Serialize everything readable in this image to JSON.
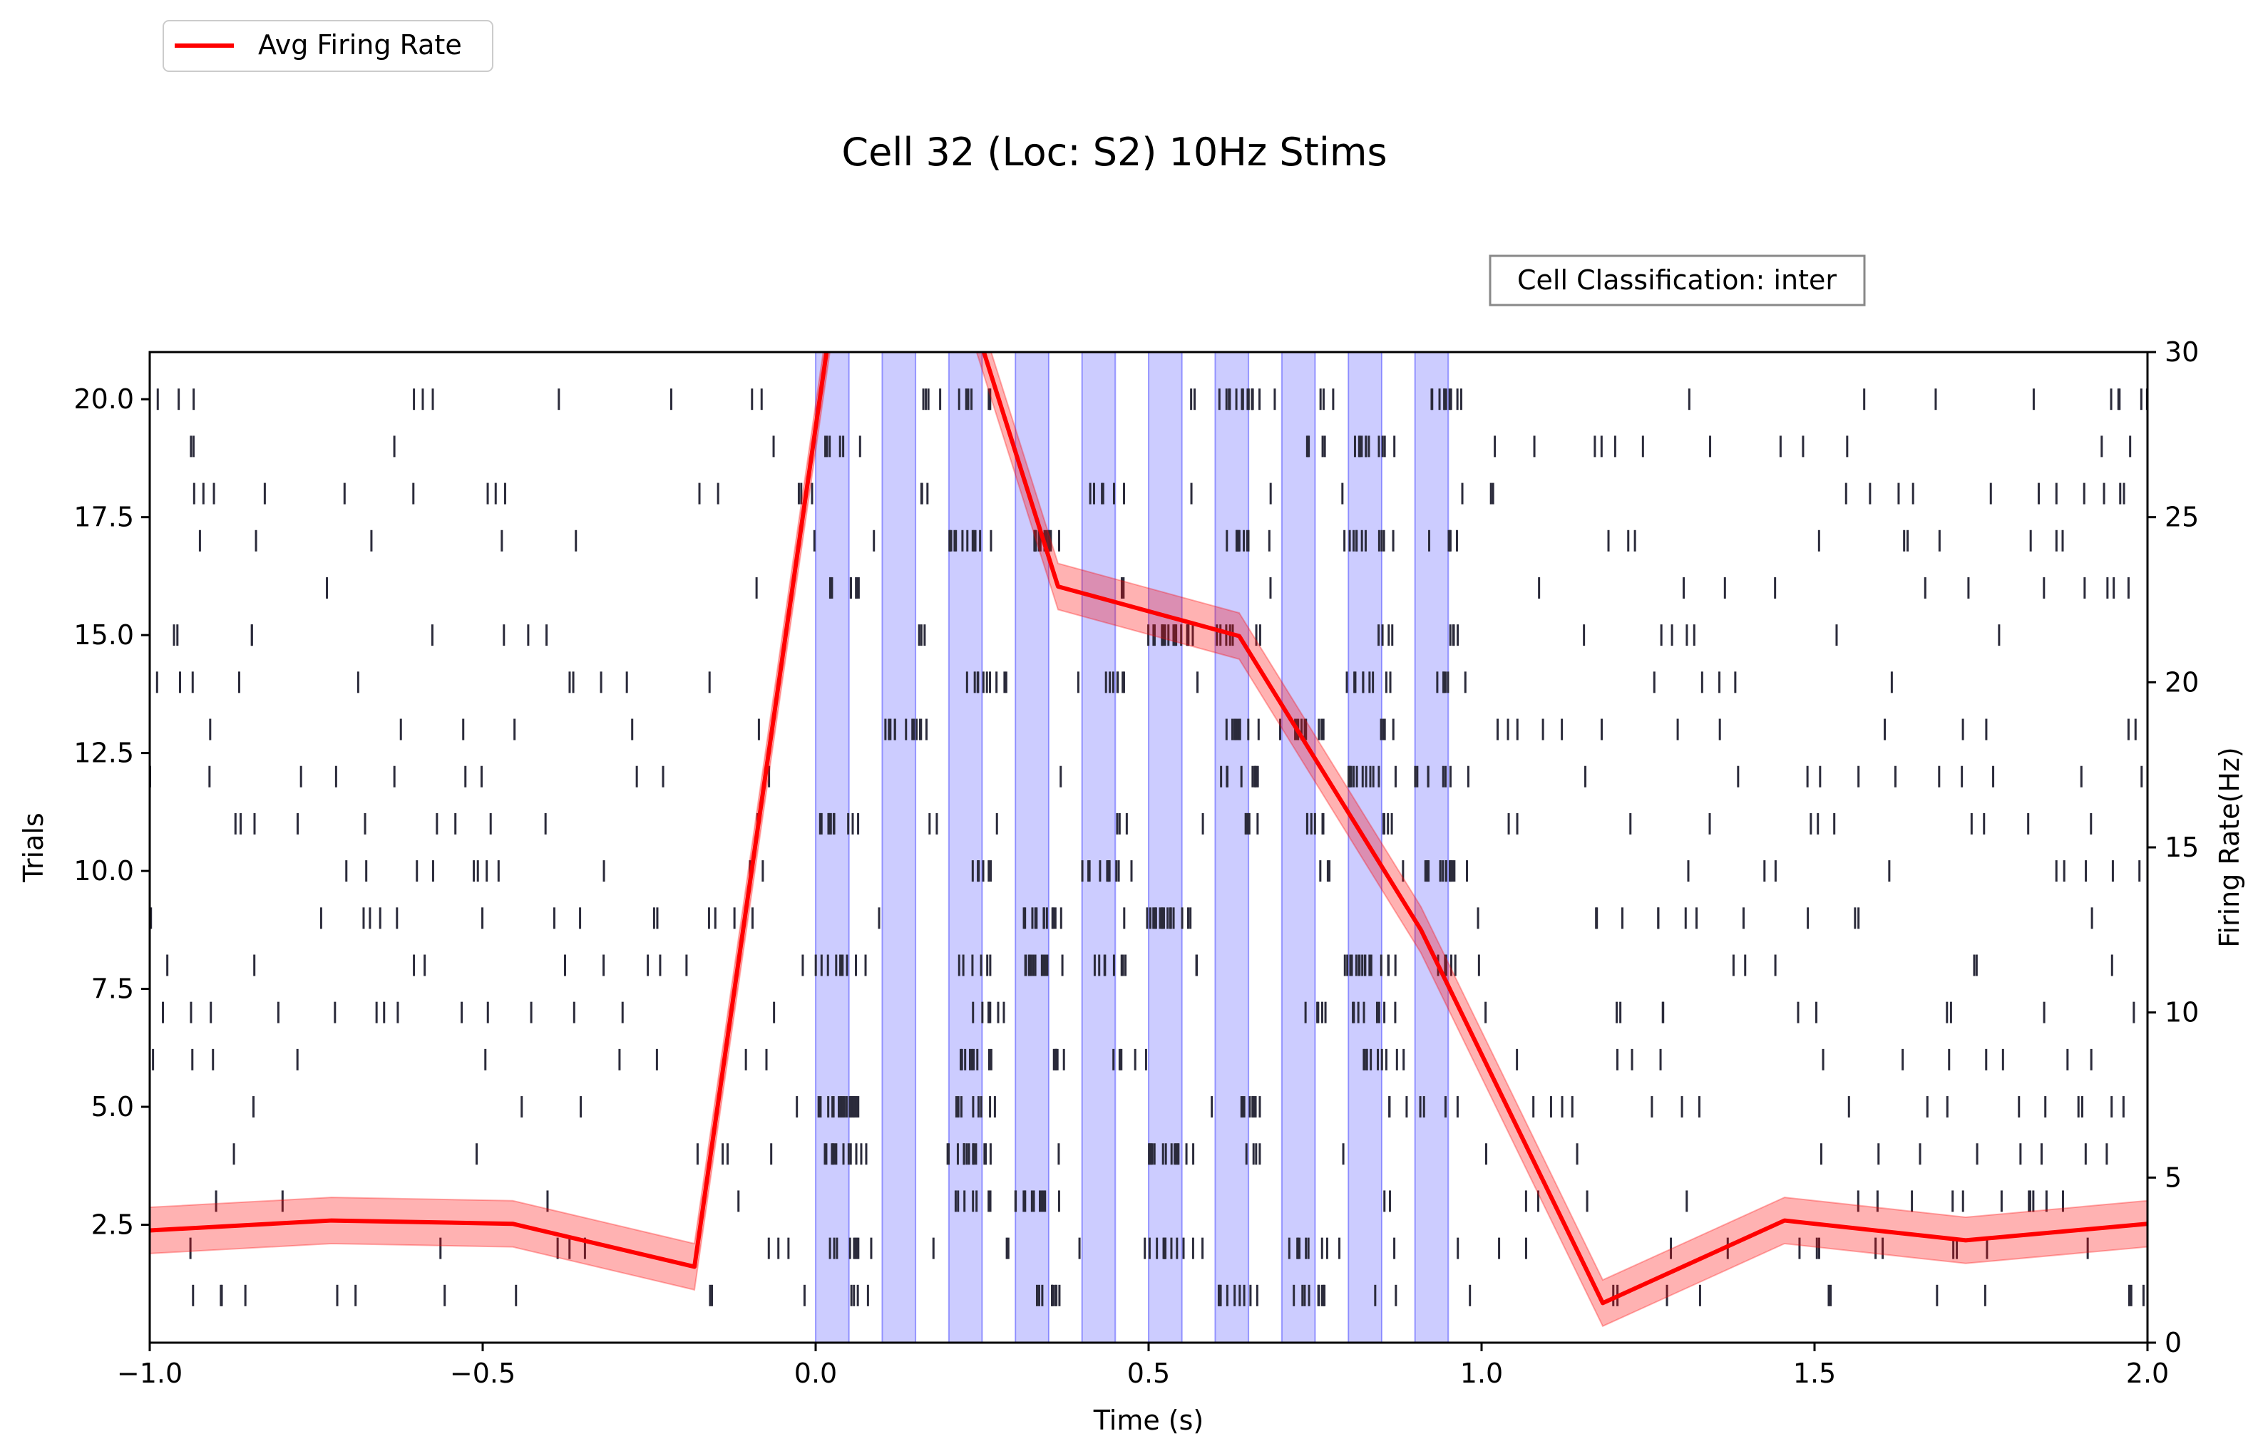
{
  "chart_data": {
    "type": "raster_with_line",
    "title": "Cell 32 (Loc: S2) 10Hz Stims",
    "xlabel": "Time (s)",
    "ylabel_left": "Trials",
    "ylabel_right": "Firing Rate(Hz)",
    "xlim": [
      -1.0,
      2.0
    ],
    "ylim_left": [
      0,
      21
    ],
    "ylim_right": [
      0,
      30
    ],
    "x_ticks": [
      {
        "v": -1.0,
        "label": "−1.0"
      },
      {
        "v": -0.5,
        "label": "−0.5"
      },
      {
        "v": 0.0,
        "label": "0.0"
      },
      {
        "v": 0.5,
        "label": "0.5"
      },
      {
        "v": 1.0,
        "label": "1.0"
      },
      {
        "v": 1.5,
        "label": "1.5"
      },
      {
        "v": 2.0,
        "label": "2.0"
      }
    ],
    "y_left_ticks": [
      {
        "v": 2.5,
        "label": "2.5"
      },
      {
        "v": 5.0,
        "label": "5.0"
      },
      {
        "v": 7.5,
        "label": "7.5"
      },
      {
        "v": 10.0,
        "label": "10.0"
      },
      {
        "v": 12.5,
        "label": "12.5"
      },
      {
        "v": 15.0,
        "label": "15.0"
      },
      {
        "v": 17.5,
        "label": "17.5"
      },
      {
        "v": 20.0,
        "label": "20.0"
      }
    ],
    "y_right_ticks": [
      {
        "v": 0,
        "label": "0"
      },
      {
        "v": 5,
        "label": "5"
      },
      {
        "v": 10,
        "label": "10"
      },
      {
        "v": 15,
        "label": "15"
      },
      {
        "v": 20,
        "label": "20"
      },
      {
        "v": 25,
        "label": "25"
      },
      {
        "v": 30,
        "label": "30"
      }
    ],
    "stim_windows": [
      [
        0.0,
        0.05
      ],
      [
        0.1,
        0.15
      ],
      [
        0.2,
        0.25
      ],
      [
        0.3,
        0.35
      ],
      [
        0.4,
        0.45
      ],
      [
        0.5,
        0.55
      ],
      [
        0.6,
        0.65
      ],
      [
        0.7,
        0.75
      ],
      [
        0.8,
        0.85
      ],
      [
        0.9,
        0.95
      ]
    ],
    "stim_color": "#0000ff",
    "raster_color": "#2b2b3b",
    "series": [
      {
        "name": "Avg Firing Rate",
        "color": "#ff0000",
        "x": [
          -1.0,
          -0.727,
          -0.455,
          -0.182,
          0.045,
          0.182,
          0.364,
          0.636,
          0.909,
          1.182,
          1.455,
          1.727,
          2.0
        ],
        "y": [
          3.4,
          3.7,
          3.6,
          2.3,
          34.0,
          34.5,
          22.9,
          21.4,
          12.5,
          1.2,
          3.7,
          3.1,
          3.6
        ],
        "band": 0.7
      }
    ],
    "legend": {
      "location": "top-left",
      "entries": [
        "Avg Firing Rate"
      ]
    },
    "annotation": "Cell Classification: inter",
    "trials": 20,
    "grid": false
  }
}
